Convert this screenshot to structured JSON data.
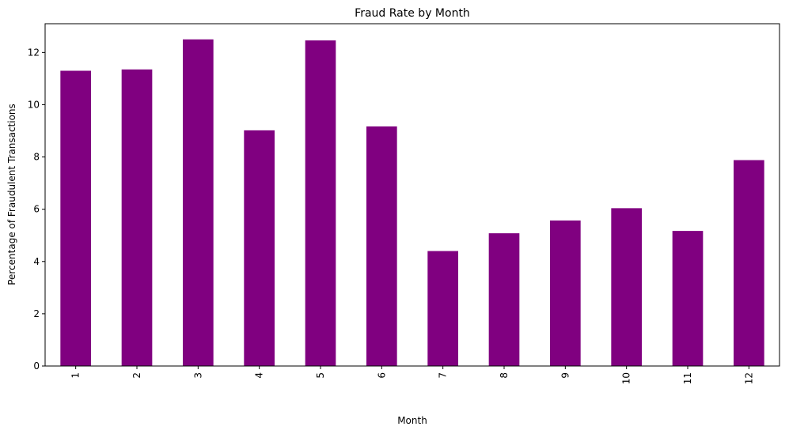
{
  "chart_data": {
    "type": "bar",
    "title": "Fraud Rate by Month",
    "xlabel": "Month",
    "ylabel": "Percentage of Fraudulent Transactions",
    "categories": [
      "1",
      "2",
      "3",
      "4",
      "5",
      "6",
      "7",
      "8",
      "9",
      "10",
      "11",
      "12"
    ],
    "values": [
      11.3,
      11.35,
      12.5,
      9.02,
      12.46,
      9.17,
      4.4,
      5.08,
      5.57,
      6.04,
      5.17,
      7.88
    ],
    "ylim": [
      0,
      13.1
    ],
    "yticks": [
      "0",
      "2",
      "4",
      "6",
      "8",
      "10",
      "12"
    ],
    "bar_color": "#800080",
    "grid": false,
    "legend": false
  }
}
